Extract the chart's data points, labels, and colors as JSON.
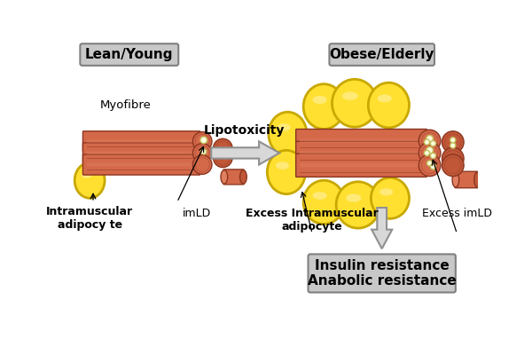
{
  "title_left": "Lean/Young",
  "title_right": "Obese/Elderly",
  "arrow_label": "Lipotoxicity",
  "label_myofibre": "Myofibre",
  "label_intramuscular": "Intramuscular\nadipocy te",
  "label_imLD": "imLD",
  "label_excess_intramuscular": "Excess Intramuscular\nadipocy te",
  "label_excess_imLD": "Excess imLD",
  "box_bottom_text": "Insulin resistance\nAnabolic resistance",
  "muscle_color": "#D4694A",
  "muscle_dark": "#8B3520",
  "muscle_mid": "#C05838",
  "muscle_light": "#E08060",
  "adipocyte_yellow": "#FFE030",
  "adipocyte_border": "#C8A800",
  "imLD_color": "#FFFFE0",
  "imLD_border": "#C0C060",
  "box_fill": "#C8C8C8",
  "box_border": "#808080",
  "arrow_fill": "#D8D8D8",
  "arrow_border": "#909090",
  "bg_color": "#FFFFFF"
}
